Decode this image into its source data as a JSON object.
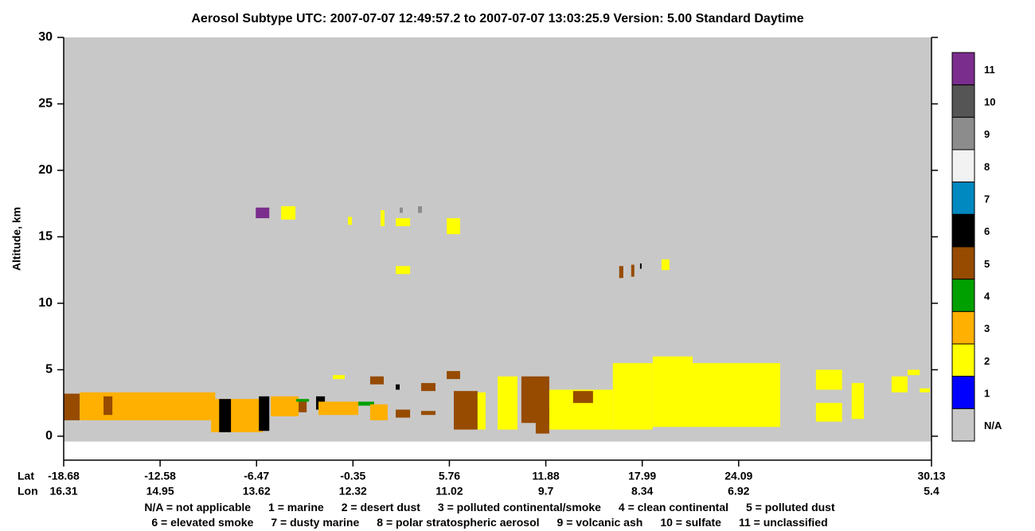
{
  "chart_data": {
    "type": "curtain",
    "title": "Aerosol Subtype    UTC:  2007-07-07   12:49:57.2  to  2007-07-07   13:03:25.9    Version: 5.00  Standard Daytime",
    "y_label": "Altitude, km",
    "ylim": [
      -1.8,
      30
    ],
    "yticks": [
      0,
      5,
      10,
      15,
      20,
      25,
      30
    ],
    "x_row_labels": [
      "Lat",
      "Lon"
    ],
    "xticks": [
      {
        "lat": -18.68,
        "lon": 16.31
      },
      {
        "lat": -12.58,
        "lon": 14.95
      },
      {
        "lat": -6.47,
        "lon": 13.62
      },
      {
        "lat": -0.35,
        "lon": 12.32
      },
      {
        "lat": 5.76,
        "lon": 11.02
      },
      {
        "lat": 11.88,
        "lon": 9.7
      },
      {
        "lat": 17.99,
        "lon": 8.34
      },
      {
        "lat": 24.09,
        "lon": 6.92
      },
      {
        "lat": 30.13,
        "lon": 5.4
      }
    ],
    "classes": [
      {
        "label": 11,
        "color": "#7b2d8e"
      },
      {
        "label": 10,
        "color": "#555555"
      },
      {
        "label": 9,
        "color": "#8c8c8c"
      },
      {
        "label": 8,
        "color": "#f2f2f2"
      },
      {
        "label": 7,
        "color": "#0088c0"
      },
      {
        "label": 6,
        "color": "#000000"
      },
      {
        "label": 5,
        "color": "#964b00"
      },
      {
        "label": 4,
        "color": "#00a000"
      },
      {
        "label": 3,
        "color": "#ffb000"
      },
      {
        "label": 2,
        "color": "#ffff00"
      },
      {
        "label": 1,
        "color": "#0000ff"
      },
      {
        "label": "N/A",
        "color": "#c8c8c8"
      }
    ],
    "regions": [
      {
        "class": "N/A",
        "lat": [
          -18.68,
          30.13
        ],
        "alt": [
          -0.4,
          30
        ]
      },
      {
        "class": 5,
        "lat": [
          -18.68,
          -17.67
        ],
        "alt": [
          1.2,
          3.2
        ]
      },
      {
        "class": 3,
        "lat": [
          -17.67,
          -9.09
        ],
        "alt": [
          1.2,
          3.3
        ]
      },
      {
        "class": 5,
        "lat": [
          -16.16,
          -15.6
        ],
        "alt": [
          1.6,
          3.0
        ]
      },
      {
        "class": 3,
        "lat": [
          -9.35,
          -6.07
        ],
        "alt": [
          0.3,
          2.8
        ]
      },
      {
        "class": 6,
        "lat": [
          -8.84,
          -8.09
        ],
        "alt": [
          0.3,
          2.8
        ]
      },
      {
        "class": 6,
        "lat": [
          -6.32,
          -5.66
        ],
        "alt": [
          0.4,
          3.0
        ]
      },
      {
        "class": 3,
        "lat": [
          -5.56,
          -3.8
        ],
        "alt": [
          1.5,
          3.0
        ]
      },
      {
        "class": 4,
        "lat": [
          -3.95,
          -3.14
        ],
        "alt": [
          2.6,
          2.8
        ]
      },
      {
        "class": 5,
        "lat": [
          -3.8,
          -3.29
        ],
        "alt": [
          1.8,
          2.6
        ]
      },
      {
        "class": 6,
        "lat": [
          -2.69,
          -2.13
        ],
        "alt": [
          2.0,
          3.0
        ]
      },
      {
        "class": 3,
        "lat": [
          -2.54,
          -0.01
        ],
        "alt": [
          1.6,
          2.6
        ]
      },
      {
        "class": 4,
        "lat": [
          -0.01,
          0.99
        ],
        "alt": [
          2.3,
          2.6
        ]
      },
      {
        "class": 3,
        "lat": [
          0.74,
          1.85
        ],
        "alt": [
          1.2,
          2.4
        ]
      },
      {
        "class": 5,
        "lat": [
          2.36,
          3.27
        ],
        "alt": [
          1.4,
          2.0
        ]
      },
      {
        "class": 5,
        "lat": [
          3.97,
          4.88
        ],
        "alt": [
          1.6,
          1.9
        ]
      },
      {
        "class": 5,
        "lat": [
          6.04,
          7.55
        ],
        "alt": [
          0.5,
          3.4
        ]
      },
      {
        "class": 2,
        "lat": [
          7.55,
          8.06
        ],
        "alt": [
          0.5,
          3.3
        ]
      },
      {
        "class": 2,
        "lat": [
          8.82,
          10.08
        ],
        "alt": [
          0.5,
          4.5
        ]
      },
      {
        "class": 5,
        "lat": [
          10.33,
          12.1
        ],
        "alt": [
          1.0,
          4.5
        ]
      },
      {
        "class": 5,
        "lat": [
          11.24,
          12.1
        ],
        "alt": [
          0.2,
          2.2
        ]
      },
      {
        "class": 2,
        "lat": [
          12.1,
          16.13
        ],
        "alt": [
          0.5,
          3.5
        ]
      },
      {
        "class": 5,
        "lat": [
          13.61,
          14.87
        ],
        "alt": [
          2.5,
          3.4
        ]
      },
      {
        "class": 2,
        "lat": [
          16.13,
          18.65
        ],
        "alt": [
          0.5,
          5.5
        ]
      },
      {
        "class": 2,
        "lat": [
          18.65,
          21.18
        ],
        "alt": [
          0.7,
          6.0
        ]
      },
      {
        "class": 2,
        "lat": [
          21.18,
          25.39
        ],
        "alt": [
          0.7,
          5.5
        ]
      },
      {
        "class": 2,
        "lat": [
          26.51,
          27.33
        ],
        "alt": [
          3.5,
          5.0
        ]
      },
      {
        "class": 2,
        "lat": [
          26.51,
          27.33
        ],
        "alt": [
          1.1,
          2.5
        ]
      },
      {
        "class": 2,
        "lat": [
          27.63,
          28.01
        ],
        "alt": [
          1.3,
          4.0
        ]
      },
      {
        "class": 2,
        "lat": [
          28.88,
          29.38
        ],
        "alt": [
          3.3,
          4.5
        ]
      },
      {
        "class": 2,
        "lat": [
          29.38,
          29.76
        ],
        "alt": [
          4.6,
          5.0
        ]
      },
      {
        "class": 2,
        "lat": [
          29.76,
          30.08
        ],
        "alt": [
          3.3,
          3.6
        ]
      },
      {
        "class": 2,
        "lat": [
          -1.63,
          -0.87
        ],
        "alt": [
          4.3,
          4.6
        ]
      },
      {
        "class": 5,
        "lat": [
          0.74,
          1.6
        ],
        "alt": [
          3.9,
          4.5
        ]
      },
      {
        "class": 6,
        "lat": [
          2.36,
          2.61
        ],
        "alt": [
          3.5,
          3.9
        ]
      },
      {
        "class": 5,
        "lat": [
          3.97,
          4.88
        ],
        "alt": [
          3.4,
          4.0
        ]
      },
      {
        "class": 5,
        "lat": [
          5.59,
          6.44
        ],
        "alt": [
          4.3,
          4.9
        ]
      },
      {
        "class": 11,
        "lat": [
          -6.52,
          -5.66
        ],
        "alt": [
          16.4,
          17.2
        ]
      },
      {
        "class": 2,
        "lat": [
          -4.91,
          -4.0
        ],
        "alt": [
          16.3,
          17.3
        ]
      },
      {
        "class": 2,
        "lat": [
          -0.67,
          -0.42
        ],
        "alt": [
          15.9,
          16.5
        ]
      },
      {
        "class": 2,
        "lat": [
          1.4,
          1.65
        ],
        "alt": [
          15.8,
          17.0
        ]
      },
      {
        "class": 2,
        "lat": [
          2.36,
          3.27
        ],
        "alt": [
          15.8,
          16.4
        ]
      },
      {
        "class": 9,
        "lat": [
          2.61,
          2.81
        ],
        "alt": [
          16.8,
          17.2
        ]
      },
      {
        "class": 9,
        "lat": [
          3.77,
          4.02
        ],
        "alt": [
          16.8,
          17.3
        ]
      },
      {
        "class": 2,
        "lat": [
          2.36,
          3.27
        ],
        "alt": [
          12.2,
          12.8
        ]
      },
      {
        "class": 2,
        "lat": [
          5.59,
          6.44
        ],
        "alt": [
          15.2,
          16.4
        ]
      },
      {
        "class": 5,
        "lat": [
          16.53,
          16.79
        ],
        "alt": [
          11.9,
          12.8
        ]
      },
      {
        "class": 5,
        "lat": [
          17.29,
          17.49
        ],
        "alt": [
          12.0,
          12.9
        ]
      },
      {
        "class": 6,
        "lat": [
          17.85,
          17.95
        ],
        "alt": [
          12.6,
          13.0
        ]
      },
      {
        "class": 2,
        "lat": [
          19.21,
          19.71
        ],
        "alt": [
          12.5,
          13.3
        ]
      }
    ],
    "footnote": [
      [
        "N/A = not applicable",
        "1 = marine",
        "2 = desert dust",
        "3 = polluted continental/smoke",
        "4 = clean continental",
        "5 = polluted dust"
      ],
      [
        "6 = elevated smoke",
        "7 = dusty marine",
        "8 = polar stratospheric aerosol",
        "9 = volcanic ash",
        "10 = sulfate",
        "11 = unclassified"
      ]
    ]
  }
}
